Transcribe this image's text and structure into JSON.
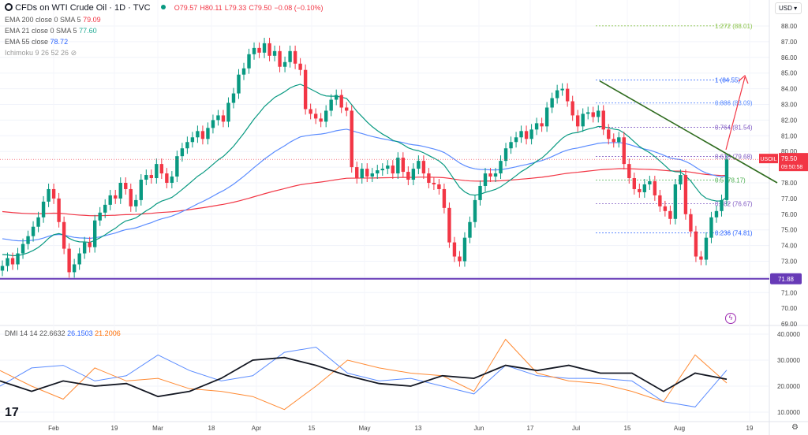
{
  "header": {
    "title": "CFDs on WTI Crude Oil · 1D · TVC",
    "open": "O79.57",
    "high": "H80.11",
    "low": "L79.33",
    "close": "C79.50",
    "change": "−0.08 (−0.10%)"
  },
  "indicators": [
    {
      "label": "EMA 200 close 0 SMA 5",
      "value": "79.09",
      "color": "#f23645"
    },
    {
      "label": "EMA 21 close 0 SMA 5",
      "value": "77.60",
      "color": "#22ab94"
    },
    {
      "label": "EMA 55 close",
      "value": "78.72",
      "color": "#2962ff"
    },
    {
      "label": "Ichimoku 9 26 52 26",
      "value": ""
    }
  ],
  "currency": "USD",
  "symbol_tag": "USOIL",
  "last_price": "79.50",
  "countdown": "09:50:58",
  "support_label": "71.88",
  "dmi_legend": {
    "label": "DMI 14 14",
    "adx": "22.6632",
    "plus": "26.1503",
    "minus": "21.2006"
  },
  "colors": {
    "up": "#089981",
    "down": "#f23645",
    "ema200": "#f23645",
    "ema21": "#089981",
    "ema55": "#5b8cff",
    "support": "#673ab7",
    "trend": "#2e6b1e",
    "adx": "#131722",
    "plus_di": "#5b8cff",
    "minus_di": "#ff8a33"
  },
  "chart_data": {
    "type": "candlestick",
    "price_axis": {
      "ticks": [
        "88.00",
        "87.00",
        "86.00",
        "85.00",
        "84.00",
        "83.00",
        "82.00",
        "81.00",
        "80.00",
        "78.00",
        "77.00",
        "76.00",
        "75.00",
        "74.00",
        "73.00",
        "71.00",
        "70.00",
        "69.00"
      ],
      "ylim": [
        69,
        88.5
      ]
    },
    "time_axis": [
      "Feb",
      "19",
      "Mar",
      "18",
      "Apr",
      "15",
      "May",
      "13",
      "Jun",
      "17",
      "Jul",
      "15",
      "Aug",
      "19"
    ],
    "closes": [
      72.7,
      73.2,
      72.8,
      73.5,
      74.1,
      74.6,
      75.2,
      75.8,
      76.8,
      77.6,
      77.0,
      75.5,
      73.8,
      72.3,
      72.8,
      73.5,
      74.2,
      73.9,
      75.6,
      76.1,
      76.6,
      77.2,
      77.0,
      78.0,
      77.6,
      76.5,
      76.9,
      78.2,
      78.5,
      78.3,
      79.2,
      78.6,
      78.0,
      78.4,
      79.7,
      80.2,
      80.6,
      80.9,
      81.3,
      80.8,
      81.5,
      82.0,
      82.3,
      81.9,
      83.1,
      83.7,
      84.9,
      85.3,
      86.2,
      86.6,
      86.3,
      86.9,
      86.1,
      86.4,
      85.4,
      85.7,
      86.4,
      85.6,
      85.2,
      82.7,
      82.4,
      82.1,
      81.9,
      82.6,
      83.3,
      83.6,
      82.8,
      82.6,
      79.0,
      78.3,
      78.9,
      78.4,
      78.6,
      78.8,
      78.9,
      79.1,
      78.6,
      79.6,
      78.7,
      78.2,
      78.9,
      79.4,
      78.6,
      78.0,
      77.9,
      77.6,
      76.4,
      74.2,
      73.3,
      73.0,
      74.5,
      75.5,
      76.9,
      77.8,
      78.6,
      78.4,
      78.6,
      79.4,
      80.2,
      80.6,
      80.9,
      81.3,
      80.8,
      81.4,
      81.8,
      81.6,
      82.8,
      83.4,
      83.9,
      84.0,
      83.2,
      82.3,
      81.6,
      82.4,
      82.5,
      82.2,
      82.6,
      81.4,
      80.8,
      80.6,
      80.9,
      79.2,
      78.3,
      77.6,
      77.4,
      77.9,
      78.1,
      77.2,
      76.5,
      76.2,
      75.7,
      77.9,
      78.5,
      76.0,
      74.9,
      73.3,
      73.1,
      74.5,
      75.8,
      76.2,
      76.9,
      79.5
    ],
    "fib_levels": [
      {
        "ratio": "1.272",
        "price": 88.01,
        "label": "1.272 (88.01)",
        "color": "#8bc34a"
      },
      {
        "ratio": "1",
        "price": 84.55,
        "label": "1 (84.55)",
        "color": "#2962ff"
      },
      {
        "ratio": "0.886",
        "price": 83.09,
        "label": "0.886 (83.09)",
        "color": "#5b8cff"
      },
      {
        "ratio": "0.764",
        "price": 81.54,
        "label": "0.764 (81.54)",
        "color": "#7e57c2"
      },
      {
        "ratio": "0.618",
        "price": 79.68,
        "label": "0.618 (79.68)",
        "color": "#7e57c2"
      },
      {
        "ratio": "0.5",
        "price": 78.17,
        "label": "0.5 (78.17)",
        "color": "#4caf50"
      },
      {
        "ratio": "0.382",
        "price": 76.67,
        "label": "0.382 (76.67)",
        "color": "#7e57c2"
      },
      {
        "ratio": "0.236",
        "price": 74.81,
        "label": "0.236 (74.81)",
        "color": "#2962ff"
      }
    ],
    "support": 71.88,
    "trendline": [
      84.5,
      78.0
    ],
    "dmi": {
      "ticks": [
        "40.0000",
        "30.0000",
        "20.0000",
        "10.0000"
      ],
      "ylim": [
        8,
        41
      ],
      "adx": [
        22,
        18,
        22,
        20,
        21,
        16,
        18,
        23,
        30,
        31,
        28,
        24,
        21,
        20,
        24,
        23,
        28,
        26,
        28,
        25,
        25,
        18,
        25,
        22.66
      ],
      "plus_di": [
        20,
        27,
        28,
        22,
        24,
        32,
        26,
        22,
        24,
        33,
        35,
        25,
        22,
        23,
        20,
        17,
        28,
        24,
        23,
        23,
        22,
        14,
        12,
        26.15
      ],
      "minus_di": [
        26,
        20,
        15,
        27,
        22,
        23,
        19,
        18,
        16,
        11,
        20,
        30,
        27,
        25,
        24,
        18,
        38,
        25,
        22,
        21,
        18,
        14,
        32,
        21.2
      ]
    }
  }
}
